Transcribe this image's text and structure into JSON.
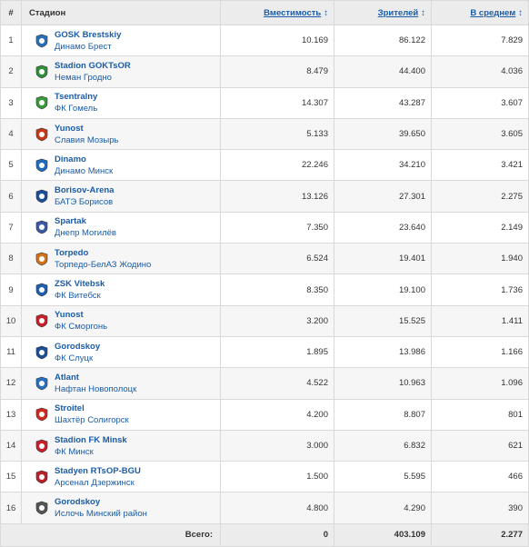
{
  "header": {
    "num": "#",
    "stadium": "Стадион",
    "capacity": "Вместимость",
    "attendance": "Зрителей",
    "average": "В среднем",
    "sort_icon": "sort-arrows-icon"
  },
  "rows": [
    {
      "num": "1",
      "stadium": "GOSK Brestskiy",
      "club": "Динамо Брест",
      "capacity": "10.169",
      "attendance": "86.122",
      "average": "7.829",
      "logo_icon": "dinamo-brest-crest-icon",
      "logo_color": "#2a6fb8"
    },
    {
      "num": "2",
      "stadium": "Stadion GOKTsOR",
      "club": "Неман Гродно",
      "capacity": "8.479",
      "attendance": "44.400",
      "average": "4.036",
      "logo_icon": "neman-grodno-crest-icon",
      "logo_color": "#2f8f3a"
    },
    {
      "num": "3",
      "stadium": "Tsentralny",
      "club": "ФК Гомель",
      "capacity": "14.307",
      "attendance": "43.287",
      "average": "3.607",
      "logo_icon": "gomel-crest-icon",
      "logo_color": "#3a9a3a"
    },
    {
      "num": "4",
      "stadium": "Yunost",
      "club": "Славия Мозырь",
      "capacity": "5.133",
      "attendance": "39.650",
      "average": "3.605",
      "logo_icon": "slavia-mozyr-crest-icon",
      "logo_color": "#c43a1a"
    },
    {
      "num": "5",
      "stadium": "Dinamo",
      "club": "Динамо Минск",
      "capacity": "22.246",
      "attendance": "34.210",
      "average": "3.421",
      "logo_icon": "dinamo-minsk-crest-icon",
      "logo_color": "#1f6bc0"
    },
    {
      "num": "6",
      "stadium": "Borisov-Arena",
      "club": "БАТЭ Борисов",
      "capacity": "13.126",
      "attendance": "27.301",
      "average": "2.275",
      "logo_icon": "bate-borisov-crest-icon",
      "logo_color": "#1b4f9c"
    },
    {
      "num": "7",
      "stadium": "Spartak",
      "club": "Днепр Могилёв",
      "capacity": "7.350",
      "attendance": "23.640",
      "average": "2.149",
      "logo_icon": "dnepr-mogilev-crest-icon",
      "logo_color": "#3a5aa8"
    },
    {
      "num": "8",
      "stadium": "Torpedo",
      "club": "Торпедо-БелАЗ Жодино",
      "capacity": "6.524",
      "attendance": "19.401",
      "average": "1.940",
      "logo_icon": "torpedo-belaz-crest-icon",
      "logo_color": "#d0731a"
    },
    {
      "num": "9",
      "stadium": "ZSK Vitebsk",
      "club": "ФК Витебск",
      "capacity": "8.350",
      "attendance": "19.100",
      "average": "1.736",
      "logo_icon": "vitebsk-crest-icon",
      "logo_color": "#1f5fb0"
    },
    {
      "num": "10",
      "stadium": "Yunost",
      "club": "ФК Сморгонь",
      "capacity": "3.200",
      "attendance": "15.525",
      "average": "1.411",
      "logo_icon": "smorgon-crest-icon",
      "logo_color": "#c8202a"
    },
    {
      "num": "11",
      "stadium": "Gorodskoy",
      "club": "ФК Слуцк",
      "capacity": "1.895",
      "attendance": "13.986",
      "average": "1.166",
      "logo_icon": "slutsk-crest-icon",
      "logo_color": "#1d4f96"
    },
    {
      "num": "12",
      "stadium": "Atlant",
      "club": "Нафтан Новополоцк",
      "capacity": "4.522",
      "attendance": "10.963",
      "average": "1.096",
      "logo_icon": "naftan-crest-icon",
      "logo_color": "#2a70c0"
    },
    {
      "num": "13",
      "stadium": "Stroitel",
      "club": "Шахтёр Солигорск",
      "capacity": "4.200",
      "attendance": "8.807",
      "average": "801",
      "logo_icon": "shakhtar-soligorsk-crest-icon",
      "logo_color": "#d02a20"
    },
    {
      "num": "14",
      "stadium": "Stadion FK Minsk",
      "club": "ФК Минск",
      "capacity": "3.000",
      "attendance": "6.832",
      "average": "621",
      "logo_icon": "fc-minsk-crest-icon",
      "logo_color": "#c8202a"
    },
    {
      "num": "15",
      "stadium": "Stadyen RTsOP-BGU",
      "club": "Арсенал Дзержинск",
      "capacity": "1.500",
      "attendance": "5.595",
      "average": "466",
      "logo_icon": "arsenal-dzerzhinsk-crest-icon",
      "logo_color": "#b8202a"
    },
    {
      "num": "16",
      "stadium": "Gorodskoy",
      "club": "Ислочь Минский район",
      "capacity": "4.800",
      "attendance": "4.290",
      "average": "390",
      "logo_icon": "isloch-crest-icon",
      "logo_color": "#555555"
    }
  ],
  "footer": {
    "label": "Всего:",
    "capacity": "0",
    "attendance": "403.109",
    "average": "2.277"
  },
  "colors": {
    "link": "#1a5ca8",
    "header_bg": "#ececec",
    "row_alt_bg": "#f6f6f6",
    "border": "#d9d9d9"
  }
}
